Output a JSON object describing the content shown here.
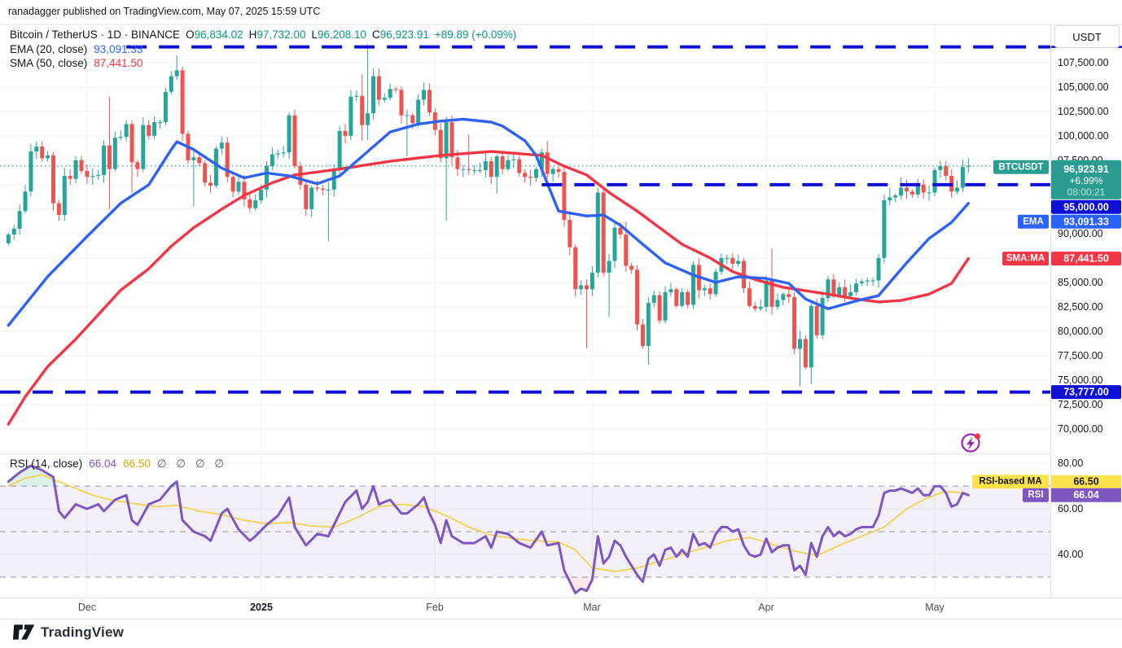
{
  "attribution": "ranadagger published on TradingView.com, May 07, 2025 15:59 UTC",
  "symbol_legend": {
    "title": "Bitcoin / TetherUS · 1D · BINANCE",
    "ohlc": {
      "o_label": "O",
      "o": "96,834.02",
      "h_label": "H",
      "h": "97,732.00",
      "l_label": "L",
      "l": "96,208.10",
      "c_label": "C",
      "c": "96,923.91",
      "change": "+89.89 (+0.09%)"
    },
    "ema_label": "EMA (20, close)",
    "ema_value": "93,091.33",
    "sma_label": "SMA (50, close)",
    "sma_value": "87,441.50"
  },
  "rsi_legend": {
    "label": "RSI (14, close)",
    "rsi_value": "66.04",
    "ma_value": "66.50",
    "hidden_values": "∅ ∅ ∅ ∅"
  },
  "price_axis": {
    "currency_button": "USDT",
    "ticks": [
      {
        "label": "107,500.00",
        "price": 107500
      },
      {
        "label": "105,000.00",
        "price": 105000
      },
      {
        "label": "102,500.00",
        "price": 102500
      },
      {
        "label": "100,000.00",
        "price": 100000
      },
      {
        "label": "97,500.00",
        "price": 97500
      },
      {
        "label": "90,000.00",
        "price": 90000
      },
      {
        "label": "85,000.00",
        "price": 85000
      },
      {
        "label": "82,500.00",
        "price": 82500
      },
      {
        "label": "80,000.00",
        "price": 80000
      },
      {
        "label": "77,500.00",
        "price": 77500
      },
      {
        "label": "75,000.00",
        "price": 75000
      },
      {
        "label": "72,500.00",
        "price": 72500
      },
      {
        "label": "70,000.00",
        "price": 70000
      }
    ]
  },
  "rsi_axis": {
    "ticks": [
      {
        "label": "80.00",
        "value": 80
      },
      {
        "label": "60.00",
        "value": 60
      },
      {
        "label": "40.00",
        "value": 40
      }
    ]
  },
  "axis_tags": {
    "btcusdt": {
      "name": "BTCUSDT",
      "price": "96,923.91",
      "change": "+6.99%",
      "countdown": "08:00:21",
      "bg": "#2a9d90",
      "price_value": 96923.91
    },
    "level_mid": {
      "label": "95,000.00",
      "bg": "#0e10d8"
    },
    "ema": {
      "name": "EMA",
      "label": "93,091.33",
      "bg": "#2962ff"
    },
    "sma": {
      "name": "SMA:MA",
      "label": "87,441.50",
      "bg": "#f23645"
    },
    "level_low": {
      "label": "73,777.00",
      "bg": "#0e10d8"
    },
    "rsi_ma": {
      "name": "RSI-based MA",
      "label": "66.50",
      "bg": "#ffe24c",
      "fg": "#131722"
    },
    "rsi": {
      "name": "RSI",
      "label": "66.04",
      "bg": "#7e57c2",
      "fg": "#ffffff"
    }
  },
  "time_axis": [
    {
      "label": "Dec",
      "month_index": 14
    },
    {
      "label": "2025",
      "month_index": 45,
      "bold": true
    },
    {
      "label": "Feb",
      "month_index": 76
    },
    {
      "label": "Mar",
      "month_index": 104
    },
    {
      "label": "Apr",
      "month_index": 135
    },
    {
      "label": "May",
      "month_index": 165
    }
  ],
  "footer": {
    "brand": "TradingView"
  },
  "colors": {
    "up": "#26a69a",
    "down": "#ef5350",
    "ema": "#2e62f4",
    "sma": "#f23645",
    "level_blue": "#0e10d8",
    "current_dotted": "#26a69a",
    "rsi_line": "#7e57c2",
    "rsi_ma_line": "#f5ce42",
    "rsi_band": "rgba(126,87,194,0.09)",
    "rsi_dashed": "#9598a3",
    "grid": "#f0f2f7",
    "separator": "#e0e3eb",
    "overbought_fill": "rgba(34,171,108,0.16)",
    "oversold_fill": "rgba(242,54,69,0.12)",
    "flash_icon": "#9c27b0",
    "flash_dot": "#f23645",
    "text_dark": "#131722"
  },
  "chart_data": {
    "type": "candlestick",
    "title": "Bitcoin / TetherUS 1D BINANCE with EMA(20), SMA(50) and RSI(14) panel",
    "start_date": "2024-11-17",
    "interval": "1D",
    "scales": {
      "index_range": [
        -1.5,
        185.6
      ],
      "price_range": [
        67500,
        111400
      ],
      "rsi_range": [
        21.07,
        84
      ]
    },
    "price_gridlines": [
      70000,
      72500,
      75000,
      77500,
      80000,
      82500,
      85000,
      87500,
      90000,
      92500,
      95000,
      97500,
      100000,
      102500,
      105000,
      107500
    ],
    "month_indices": [
      14,
      45,
      76,
      104,
      135,
      165
    ],
    "open_overrides": {
      "0": 89000,
      "171": 96834.02
    },
    "closes": [
      89900,
      90500,
      92300,
      94300,
      98400,
      98900,
      97700,
      98000,
      93100,
      91900,
      95900,
      95600,
      97500,
      96400,
      95800,
      95900,
      96000,
      99000,
      96600,
      99800,
      99900,
      101200,
      97300,
      96600,
      101100,
      100000,
      101400,
      101400,
      104500,
      106100,
      106700,
      100200,
      97500,
      97800,
      97200,
      95200,
      94900,
      98700,
      99300,
      95800,
      94300,
      95300,
      93500,
      92600,
      93400,
      94500,
      96900,
      98100,
      98200,
      98300,
      102100,
      96900,
      95000,
      92500,
      94700,
      94600,
      94500,
      94500,
      96600,
      100500,
      100000,
      104000,
      104100,
      101100,
      102300,
      106100,
      103700,
      103900,
      104800,
      104700,
      102100,
      102100,
      101300,
      103700,
      104700,
      102400,
      100600,
      97700,
      101400,
      97800,
      96600,
      96600,
      96500,
      96500,
      96500,
      97400,
      95800,
      97900,
      96600,
      97500,
      97600,
      96200,
      95800,
      95700,
      96600,
      98300,
      96100,
      96600,
      96300,
      91400,
      88600,
      84300,
      84700,
      84300,
      86000,
      94200,
      86000,
      87200,
      90600,
      89900,
      86700,
      86300,
      80700,
      78500,
      82900,
      83700,
      81100,
      84000,
      84300,
      82600,
      84000,
      82700,
      86800,
      84200,
      84400,
      83800,
      86100,
      87500,
      87500,
      86900,
      87200,
      84400,
      82600,
      82300,
      82500,
      85200,
      82500,
      83200,
      83800,
      83500,
      78200,
      79200,
      76300,
      82600,
      79600,
      83400,
      85300,
      83700,
      84500,
      83600,
      84000,
      84900,
      85100,
      85200,
      85200,
      87500,
      93400,
      93700,
      93900,
      94700,
      94300,
      94000,
      95000,
      94200,
      94200,
      96500,
      96900,
      95900,
      94300,
      94700,
      96800,
      96923.91
    ],
    "wick_overrides": {
      "18": [
        104000,
        92500
      ],
      "22": [
        null,
        94150
      ],
      "30": [
        108250,
        null
      ],
      "33": [
        null,
        92800
      ],
      "51": [
        102700,
        null
      ],
      "57": [
        null,
        89200
      ],
      "63": [
        106300,
        99500
      ],
      "64": [
        109350,
        99600
      ],
      "71": [
        null,
        97900
      ],
      "78": [
        null,
        91300
      ],
      "82": [
        100150,
        null
      ],
      "87": [
        null,
        94100
      ],
      "96": [
        99480,
        null
      ],
      "103": [
        null,
        78250
      ],
      "107": [
        null,
        81500
      ],
      "110": [
        91200,
        null
      ],
      "114": [
        null,
        76600
      ],
      "123": [
        87450,
        null
      ],
      "136": [
        88500,
        null
      ],
      "141": [
        null,
        74400
      ],
      "143": [
        null,
        74600
      ],
      "157": [
        94700,
        null
      ],
      "159": [
        95770,
        null
      ],
      "162": [
        95600,
        null
      ],
      "166": [
        97430,
        null
      ],
      "171": [
        97732,
        96208.1
      ]
    },
    "last_bar_ohlc": {
      "open": 96834.02,
      "high": 97732.0,
      "low": 96208.1,
      "close": 96923.91
    },
    "levels": [
      {
        "price": 109100,
        "from_index": 21,
        "style": "dashed"
      },
      {
        "price": 95000,
        "from_index": 95,
        "style": "dashed"
      },
      {
        "price": 73777,
        "from_index": -1.5,
        "style": "dashed"
      }
    ],
    "current_price": 96923.91,
    "ema20_points": [
      [
        0,
        80600
      ],
      [
        7,
        85600
      ],
      [
        14,
        89700
      ],
      [
        20,
        93100
      ],
      [
        25,
        95000
      ],
      [
        29,
        98600
      ],
      [
        30,
        99400
      ],
      [
        33,
        98600
      ],
      [
        38,
        96700
      ],
      [
        42,
        95700
      ],
      [
        46,
        96200
      ],
      [
        50,
        95900
      ],
      [
        55,
        95100
      ],
      [
        59,
        95900
      ],
      [
        64,
        98400
      ],
      [
        68,
        100400
      ],
      [
        73,
        101200
      ],
      [
        77,
        101500
      ],
      [
        81,
        101700
      ],
      [
        86,
        101400
      ],
      [
        88,
        101000
      ],
      [
        92,
        99500
      ],
      [
        94,
        98000
      ],
      [
        98,
        92300
      ],
      [
        103,
        91800
      ],
      [
        106,
        91900
      ],
      [
        109,
        90850
      ],
      [
        113,
        88900
      ],
      [
        117,
        87000
      ],
      [
        122,
        85750
      ],
      [
        126,
        85000
      ],
      [
        130,
        85580
      ],
      [
        135,
        85400
      ],
      [
        139,
        84900
      ],
      [
        142,
        83300
      ],
      [
        146,
        82300
      ],
      [
        151,
        83100
      ],
      [
        155,
        83650
      ],
      [
        160,
        87000
      ],
      [
        164,
        89500
      ],
      [
        168,
        91150
      ],
      [
        171,
        93091.33
      ]
    ],
    "sma50_points": [
      [
        0,
        70500
      ],
      [
        3,
        73300
      ],
      [
        7,
        76400
      ],
      [
        12,
        79200
      ],
      [
        16,
        81700
      ],
      [
        20,
        84200
      ],
      [
        25,
        86400
      ],
      [
        29,
        88700
      ],
      [
        33,
        90600
      ],
      [
        38,
        92500
      ],
      [
        42,
        93900
      ],
      [
        47,
        95200
      ],
      [
        51,
        96000
      ],
      [
        59,
        96600
      ],
      [
        68,
        97400
      ],
      [
        77,
        98000
      ],
      [
        86,
        98400
      ],
      [
        95,
        98000
      ],
      [
        99,
        96900
      ],
      [
        103,
        96000
      ],
      [
        107,
        94200
      ],
      [
        112,
        92300
      ],
      [
        116,
        90600
      ],
      [
        120,
        88900
      ],
      [
        125,
        87500
      ],
      [
        129,
        86100
      ],
      [
        133,
        85300
      ],
      [
        138,
        84500
      ],
      [
        146,
        83800
      ],
      [
        151,
        83300
      ],
      [
        155,
        83000
      ],
      [
        159,
        83150
      ],
      [
        164,
        83800
      ],
      [
        168,
        84900
      ],
      [
        171,
        87441.5
      ]
    ],
    "rsi_points": [
      [
        0,
        72
      ],
      [
        2,
        76
      ],
      [
        4,
        79
      ],
      [
        6,
        77
      ],
      [
        8,
        74
      ],
      [
        9,
        59
      ],
      [
        10,
        56
      ],
      [
        12,
        62
      ],
      [
        14,
        60
      ],
      [
        16,
        62
      ],
      [
        17,
        59
      ],
      [
        19,
        64
      ],
      [
        21,
        66
      ],
      [
        22,
        55
      ],
      [
        23,
        53
      ],
      [
        25,
        62
      ],
      [
        27,
        64
      ],
      [
        29,
        70
      ],
      [
        30,
        72
      ],
      [
        31,
        55
      ],
      [
        33,
        50
      ],
      [
        35,
        48
      ],
      [
        36,
        46
      ],
      [
        38,
        58
      ],
      [
        39,
        60
      ],
      [
        41,
        51
      ],
      [
        43,
        46
      ],
      [
        44,
        48
      ],
      [
        46,
        53
      ],
      [
        48,
        57
      ],
      [
        50,
        65
      ],
      [
        51,
        52
      ],
      [
        53,
        44
      ],
      [
        55,
        49
      ],
      [
        57,
        48
      ],
      [
        58,
        53
      ],
      [
        60,
        63
      ],
      [
        62,
        68
      ],
      [
        63,
        60
      ],
      [
        64,
        63
      ],
      [
        65,
        70
      ],
      [
        66,
        62
      ],
      [
        68,
        64
      ],
      [
        70,
        58
      ],
      [
        71,
        58
      ],
      [
        73,
        62
      ],
      [
        74,
        65
      ],
      [
        75,
        58
      ],
      [
        76,
        53
      ],
      [
        77,
        45
      ],
      [
        78,
        55
      ],
      [
        79,
        48
      ],
      [
        81,
        45
      ],
      [
        83,
        45
      ],
      [
        85,
        48
      ],
      [
        86,
        43
      ],
      [
        87,
        50
      ],
      [
        89,
        49
      ],
      [
        91,
        45
      ],
      [
        93,
        43
      ],
      [
        95,
        50
      ],
      [
        96,
        44
      ],
      [
        98,
        45
      ],
      [
        99,
        33
      ],
      [
        100,
        28
      ],
      [
        101,
        23
      ],
      [
        102,
        25
      ],
      [
        103,
        24
      ],
      [
        104,
        29
      ],
      [
        105,
        48
      ],
      [
        106,
        36
      ],
      [
        107,
        39
      ],
      [
        108,
        46
      ],
      [
        109,
        44
      ],
      [
        110,
        39
      ],
      [
        112,
        31
      ],
      [
        113,
        28
      ],
      [
        114,
        38
      ],
      [
        115,
        40
      ],
      [
        116,
        35
      ],
      [
        117,
        42
      ],
      [
        118,
        43
      ],
      [
        119,
        39
      ],
      [
        120,
        42
      ],
      [
        121,
        39
      ],
      [
        122,
        49
      ],
      [
        123,
        44
      ],
      [
        124,
        45
      ],
      [
        125,
        43
      ],
      [
        126,
        49
      ],
      [
        127,
        52
      ],
      [
        128,
        52
      ],
      [
        129,
        50
      ],
      [
        130,
        51
      ],
      [
        131,
        44
      ],
      [
        132,
        40
      ],
      [
        133,
        39
      ],
      [
        134,
        40
      ],
      [
        135,
        47
      ],
      [
        136,
        41
      ],
      [
        137,
        43
      ],
      [
        138,
        44
      ],
      [
        139,
        44
      ],
      [
        140,
        33
      ],
      [
        141,
        35
      ],
      [
        142,
        31
      ],
      [
        143,
        45
      ],
      [
        144,
        39
      ],
      [
        145,
        48
      ],
      [
        146,
        52
      ],
      [
        147,
        48
      ],
      [
        148,
        50
      ],
      [
        149,
        48
      ],
      [
        150,
        49
      ],
      [
        151,
        51
      ],
      [
        152,
        52
      ],
      [
        153,
        52
      ],
      [
        154,
        52
      ],
      [
        155,
        57
      ],
      [
        156,
        67
      ],
      [
        157,
        68
      ],
      [
        158,
        68
      ],
      [
        159,
        69
      ],
      [
        160,
        68
      ],
      [
        161,
        67
      ],
      [
        162,
        69
      ],
      [
        163,
        66
      ],
      [
        164,
        66
      ],
      [
        165,
        70
      ],
      [
        166,
        70
      ],
      [
        167,
        67
      ],
      [
        168,
        61
      ],
      [
        169,
        62
      ],
      [
        170,
        67
      ],
      [
        171,
        66.04
      ]
    ],
    "rsi_ma_points": [
      [
        0,
        70
      ],
      [
        3,
        73.5
      ],
      [
        6,
        75
      ],
      [
        9,
        72
      ],
      [
        12,
        69
      ],
      [
        15,
        66
      ],
      [
        18,
        64
      ],
      [
        22,
        62.5
      ],
      [
        26,
        61
      ],
      [
        30,
        61.5
      ],
      [
        34,
        59
      ],
      [
        38,
        57.5
      ],
      [
        42,
        55
      ],
      [
        46,
        53.5
      ],
      [
        50,
        54
      ],
      [
        54,
        52.5
      ],
      [
        58,
        52
      ],
      [
        62,
        56
      ],
      [
        66,
        61
      ],
      [
        70,
        62
      ],
      [
        74,
        61
      ],
      [
        78,
        57
      ],
      [
        82,
        52
      ],
      [
        86,
        48.5
      ],
      [
        90,
        47
      ],
      [
        94,
        46
      ],
      [
        98,
        45.5
      ],
      [
        101,
        42
      ],
      [
        104,
        34
      ],
      [
        108,
        32.5
      ],
      [
        112,
        34
      ],
      [
        116,
        37
      ],
      [
        120,
        40
      ],
      [
        124,
        43
      ],
      [
        128,
        46
      ],
      [
        132,
        47.5
      ],
      [
        136,
        44.5
      ],
      [
        140,
        41.5
      ],
      [
        144,
        39.5
      ],
      [
        148,
        44
      ],
      [
        152,
        48
      ],
      [
        156,
        52
      ],
      [
        160,
        60
      ],
      [
        163,
        64
      ],
      [
        166,
        67
      ],
      [
        168,
        67.5
      ],
      [
        171,
        66.5
      ]
    ],
    "rsi_bands": {
      "upper": 70,
      "middle": 50,
      "lower": 30
    },
    "rsi_gridlines": [
      80,
      60,
      40
    ],
    "legend_values": {
      "ema20": 93091.33,
      "sma50": 87441.5,
      "rsi": 66.04,
      "rsi_ma": 66.5
    }
  }
}
